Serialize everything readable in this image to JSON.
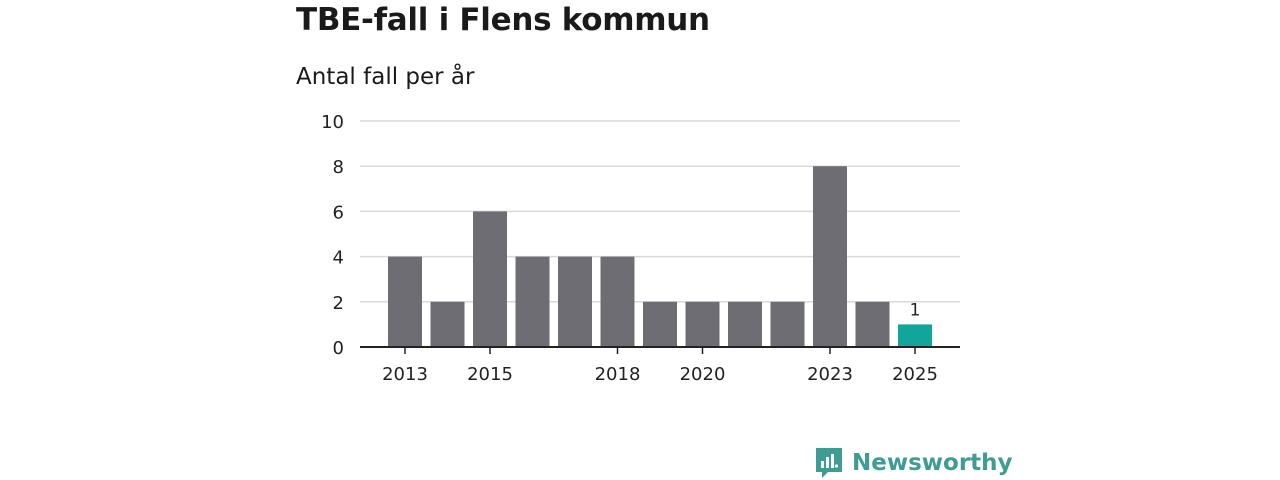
{
  "header": {
    "title": "TBE-fall i Flens kommun",
    "subtitle": "Antal fall per år"
  },
  "brand": {
    "name": "Newsworthy",
    "icon": "newsworthy-logo-icon",
    "color": "#3d9c93"
  },
  "colors": {
    "bar": "#6e6d73",
    "highlight": "#12a69a",
    "grid": "#d9d9d9",
    "axis": "#222222"
  },
  "chart_data": {
    "type": "bar",
    "categories": [
      "2013",
      "2014",
      "2015",
      "2016",
      "2017",
      "2018",
      "2019",
      "2020",
      "2021",
      "2022",
      "2023",
      "2024",
      "2025"
    ],
    "values": [
      4,
      2,
      6,
      4,
      4,
      4,
      2,
      2,
      2,
      2,
      8,
      2,
      1
    ],
    "x_tick_labels": [
      "2013",
      "2015",
      "2018",
      "2020",
      "2023",
      "2025"
    ],
    "y_ticks": [
      0,
      2,
      4,
      6,
      8,
      10
    ],
    "ylim": [
      0,
      10
    ],
    "highlight_category": "2025",
    "data_labels": [
      {
        "category": "2025",
        "text": "1"
      }
    ],
    "grid": true,
    "legend": "none"
  }
}
